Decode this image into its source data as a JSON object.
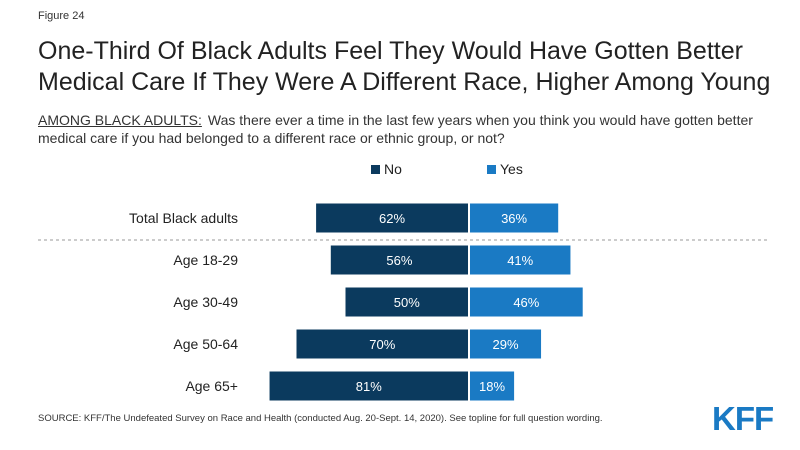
{
  "figure_label": "Figure 24",
  "title": "One-Third Of Black Adults Feel They Would Have Gotten Better Medical Care If They Were A Different Race, Higher Among Young",
  "question_prefix": "AMONG BLACK ADULTS:",
  "question_text": "Was there ever a time in the last few years when you think you would have gotten better medical care if you had belonged to a different race or ethnic group, or not?",
  "source": "SOURCE: KFF/The Undefeated Survey on Race and Health (conducted Aug. 20-Sept. 14, 2020). See topline for full question wording.",
  "logo_text": "KFF",
  "colors": {
    "no": "#0b3a5e",
    "yes": "#1a7ac4",
    "logo": "#1a7ac4",
    "divider": "#999999"
  },
  "chart_data": {
    "type": "bar",
    "orientation": "horizontal-diverging",
    "categories": [
      "Total Black adults",
      "Age 18-29",
      "Age 30-49",
      "Age 50-64",
      "Age 65+"
    ],
    "series": [
      {
        "name": "No",
        "values": [
          62,
          56,
          50,
          70,
          81
        ],
        "labels": [
          "62%",
          "56%",
          "50%",
          "70%",
          "81%"
        ]
      },
      {
        "name": "Yes",
        "values": [
          36,
          41,
          46,
          29,
          18
        ],
        "labels": [
          "36%",
          "41%",
          "46%",
          "29%",
          "18%"
        ]
      }
    ],
    "unit": "%",
    "legend": "top-center",
    "divider_after_first_category": true,
    "grid": false
  }
}
